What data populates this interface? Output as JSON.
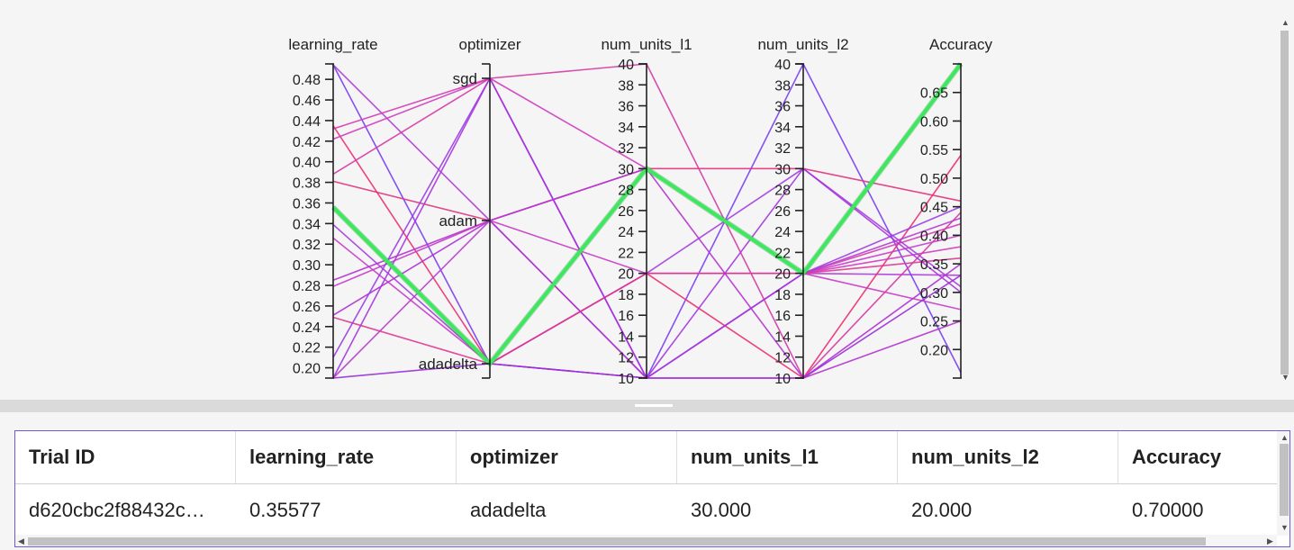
{
  "chart_data": {
    "type": "parallel_coordinates",
    "axes": [
      {
        "name": "learning_rate",
        "kind": "numeric",
        "range": [
          0.19,
          0.495
        ],
        "ticks": [
          0.48,
          0.46,
          0.44,
          0.42,
          0.4,
          0.38,
          0.36,
          0.34,
          0.32,
          0.3,
          0.28,
          0.26,
          0.24,
          0.22,
          0.2
        ],
        "decimals": 2
      },
      {
        "name": "optimizer",
        "kind": "categorical",
        "categories": [
          "sgd",
          "adam",
          "adadelta"
        ]
      },
      {
        "name": "num_units_l1",
        "kind": "numeric",
        "range": [
          10,
          40
        ],
        "ticks": [
          40,
          38,
          36,
          34,
          32,
          30,
          28,
          26,
          24,
          22,
          20,
          18,
          16,
          14,
          12,
          10
        ],
        "decimals": 0
      },
      {
        "name": "num_units_l2",
        "kind": "numeric",
        "range": [
          10,
          40
        ],
        "ticks": [
          40,
          38,
          36,
          34,
          32,
          30,
          28,
          26,
          24,
          22,
          20,
          18,
          16,
          14,
          12,
          10
        ],
        "decimals": 0
      },
      {
        "name": "Accuracy",
        "kind": "numeric",
        "range": [
          0.15,
          0.7
        ],
        "ticks": [
          0.65,
          0.6,
          0.55,
          0.5,
          0.45,
          0.4,
          0.35,
          0.3,
          0.25,
          0.2
        ],
        "decimals": 2
      }
    ],
    "trials": [
      {
        "learning_rate": 0.494,
        "optimizer": "adam",
        "num_units_l1": 10,
        "num_units_l2": 20,
        "Accuracy": 0.33,
        "color": "#b03cd8"
      },
      {
        "learning_rate": 0.494,
        "optimizer": "adadelta",
        "num_units_l1": 10,
        "num_units_l2": 40,
        "Accuracy": 0.16,
        "color": "#7a3ef0"
      },
      {
        "learning_rate": 0.432,
        "optimizer": "sgd",
        "num_units_l1": 10,
        "num_units_l2": 20,
        "Accuracy": 0.42,
        "color": "#d43cb4"
      },
      {
        "learning_rate": 0.435,
        "optimizer": "adadelta",
        "num_units_l1": 20,
        "num_units_l2": 10,
        "Accuracy": 0.54,
        "color": "#ea2f72"
      },
      {
        "learning_rate": 0.422,
        "optimizer": "sgd",
        "num_units_l1": 30,
        "num_units_l2": 20,
        "Accuracy": 0.38,
        "color": "#d03cc0"
      },
      {
        "learning_rate": 0.388,
        "optimizer": "sgd",
        "num_units_l1": 40,
        "num_units_l2": 10,
        "Accuracy": 0.44,
        "color": "#d53aa6"
      },
      {
        "learning_rate": 0.381,
        "optimizer": "adam",
        "num_units_l1": 30,
        "num_units_l2": 30,
        "Accuracy": 0.46,
        "color": "#e03480"
      },
      {
        "learning_rate": 0.35577,
        "optimizer": "adadelta",
        "num_units_l1": 30,
        "num_units_l2": 20,
        "Accuracy": 0.7,
        "color": "#3ee85e",
        "highlight": true
      },
      {
        "learning_rate": 0.339,
        "optimizer": "adadelta",
        "num_units_l1": 20,
        "num_units_l2": 30,
        "Accuracy": 0.31,
        "color": "#a63ce0"
      },
      {
        "learning_rate": 0.326,
        "optimizer": "adadelta",
        "num_units_l1": 10,
        "num_units_l2": 20,
        "Accuracy": 0.4,
        "color": "#c63cca"
      },
      {
        "learning_rate": 0.285,
        "optimizer": "adam",
        "num_units_l1": 30,
        "num_units_l2": 10,
        "Accuracy": 0.25,
        "color": "#b532d2"
      },
      {
        "learning_rate": 0.279,
        "optimizer": "adam",
        "num_units_l1": 20,
        "num_units_l2": 20,
        "Accuracy": 0.27,
        "color": "#c83cc8"
      },
      {
        "learning_rate": 0.251,
        "optimizer": "adam",
        "num_units_l1": 10,
        "num_units_l2": 10,
        "Accuracy": 0.35,
        "color": "#b030d4"
      },
      {
        "learning_rate": 0.249,
        "optimizer": "adadelta",
        "num_units_l1": 20,
        "num_units_l2": 20,
        "Accuracy": 0.36,
        "color": "#de3990"
      },
      {
        "learning_rate": 0.21,
        "optimizer": "sgd",
        "num_units_l1": 10,
        "num_units_l2": 20,
        "Accuracy": 0.45,
        "color": "#9b3ce6"
      },
      {
        "learning_rate": 0.19,
        "optimizer": "sgd",
        "num_units_l1": 10,
        "num_units_l2": 30,
        "Accuracy": 0.3,
        "color": "#a636de"
      },
      {
        "learning_rate": 0.19,
        "optimizer": "adam",
        "num_units_l1": 30,
        "num_units_l2": 20,
        "Accuracy": 0.43,
        "color": "#b83cd0"
      },
      {
        "learning_rate": 0.19,
        "optimizer": "adadelta",
        "num_units_l1": 10,
        "num_units_l2": 10,
        "Accuracy": 0.33,
        "color": "#9a2ed8"
      }
    ]
  },
  "table": {
    "columns": [
      "Trial ID",
      "learning_rate",
      "optimizer",
      "num_units_l1",
      "num_units_l2",
      "Accuracy"
    ],
    "rows": [
      [
        "d620cbc2f88432c…",
        "0.35577",
        "adadelta",
        "30.000",
        "20.000",
        "0.70000"
      ]
    ]
  },
  "colors": {
    "highlight": "#3ee85e",
    "grid_border": "#6b5bd6",
    "pane_background": "#f5f5f5"
  }
}
